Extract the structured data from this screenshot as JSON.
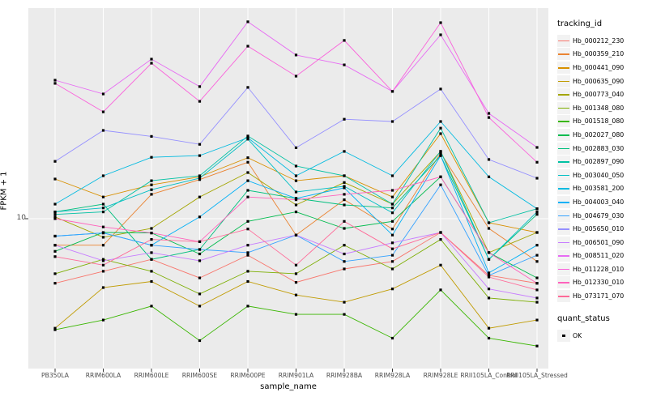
{
  "chart_data": {
    "type": "line",
    "title": "",
    "xlabel": "sample_name",
    "ylabel": "FPKM + 1",
    "y_scale": "log10",
    "y_tick_label": "10",
    "y_tick_value": 10,
    "grid": "major-white-on-gray",
    "panel_color": "#EBEBEB",
    "marker": "black-square",
    "legend_position": "right",
    "legend": {
      "tracking_title": "tracking_id",
      "quant_title": "quant_status",
      "quant_value": "OK"
    },
    "categories": [
      "PB350LA",
      "RRIM600LA",
      "RRIM600LE",
      "RRIM600SE",
      "RRIM600PE",
      "RRIM901LA",
      "RRIM928BA",
      "RRIM928LA",
      "RRIM928LE",
      "RRII105LA_Control",
      "RRII105LA_Stressed"
    ],
    "series": [
      {
        "name": "Hb_000212_230",
        "color": "#F8766D",
        "values": [
          4.8,
          5.5,
          6.3,
          5.1,
          6.6,
          4.85,
          5.65,
          6.15,
          8.55,
          5.25,
          4.8
        ]
      },
      {
        "name": "Hb_000359_210",
        "color": "#EA8331",
        "values": [
          7.4,
          7.4,
          13.2,
          15.6,
          19.0,
          8.3,
          12.4,
          8.9,
          21.1,
          8.95,
          6.15
        ]
      },
      {
        "name": "Hb_000441_090",
        "color": "#D89000",
        "values": [
          15.7,
          12.8,
          14.7,
          16.1,
          20.0,
          15.4,
          16.3,
          12.8,
          26.3,
          9.55,
          8.55
        ]
      },
      {
        "name": "Hb_000635_090",
        "color": "#C09B00",
        "values": [
          2.88,
          4.57,
          4.9,
          3.7,
          4.9,
          4.2,
          3.87,
          4.5,
          5.9,
          2.88,
          3.16
        ]
      },
      {
        "name": "Hb_000773_040",
        "color": "#A3A500",
        "values": [
          10.2,
          8.1,
          8.95,
          12.8,
          16.9,
          11.7,
          15.1,
          11.8,
          21.5,
          6.8,
          8.55
        ]
      },
      {
        "name": "Hb_001348_080",
        "color": "#7CAE00",
        "values": [
          5.35,
          6.3,
          5.5,
          4.25,
          5.5,
          5.35,
          7.4,
          5.65,
          7.9,
          4.06,
          3.87
        ]
      },
      {
        "name": "Hb_001518_080",
        "color": "#39B600",
        "values": [
          2.83,
          3.16,
          3.7,
          2.5,
          3.7,
          3.37,
          3.37,
          2.57,
          4.45,
          2.57,
          2.35
        ]
      },
      {
        "name": "Hb_002027_080",
        "color": "#00BB4E",
        "values": [
          6.9,
          8.55,
          8.5,
          6.7,
          9.7,
          10.8,
          8.95,
          9.7,
          16.1,
          6.8,
          5.1
        ]
      },
      {
        "name": "Hb_002883_030",
        "color": "#00BF7D",
        "values": [
          10.8,
          11.8,
          6.3,
          7.05,
          13.8,
          12.6,
          11.7,
          11.3,
          20.5,
          6.3,
          10.5
        ]
      },
      {
        "name": "Hb_002897_090",
        "color": "#00C1A3",
        "values": [
          10.5,
          10.8,
          15.4,
          16.3,
          25.6,
          18.2,
          16.3,
          11.8,
          28.0,
          9.55,
          11.2
        ]
      },
      {
        "name": "Hb_003040_050",
        "color": "#00BFC4",
        "values": [
          10.8,
          11.3,
          13.9,
          15.85,
          24.7,
          13.55,
          14.45,
          10.7,
          21.5,
          6.3,
          10.8
        ]
      },
      {
        "name": "Hb_003581_200",
        "color": "#00BAE0",
        "values": [
          11.8,
          16.3,
          20.1,
          20.5,
          25.1,
          16.3,
          21.5,
          16.3,
          30.2,
          16.1,
          11.2
        ]
      },
      {
        "name": "Hb_004003_040",
        "color": "#00B0F6",
        "values": [
          8.2,
          8.5,
          7.4,
          10.2,
          15.4,
          12.6,
          14.2,
          8.3,
          20.5,
          5.4,
          7.4
        ]
      },
      {
        "name": "Hb_004679_030",
        "color": "#35A2FF",
        "values": [
          8.2,
          8.5,
          7.4,
          7.05,
          6.8,
          8.3,
          6.15,
          6.6,
          14.7,
          5.25,
          6.6
        ]
      },
      {
        "name": "Hb_005650_010",
        "color": "#9590FF",
        "values": [
          19.2,
          27.3,
          25.5,
          23.3,
          44.5,
          22.4,
          31.0,
          30.2,
          43.7,
          19.6,
          15.85
        ]
      },
      {
        "name": "Hb_006501_090",
        "color": "#C77CFF",
        "values": [
          7.4,
          6.2,
          6.8,
          6.2,
          7.4,
          8.3,
          6.7,
          7.6,
          8.55,
          4.5,
          4.06
        ]
      },
      {
        "name": "Hb_008511_020",
        "color": "#E76BF3",
        "values": [
          48.3,
          41.3,
          61.4,
          44.9,
          93.8,
          64.3,
          57.5,
          42.5,
          80.9,
          33.1,
          22.5
        ]
      },
      {
        "name": "Hb_011228_010",
        "color": "#FA62DB",
        "values": [
          46.6,
          33.7,
          58.6,
          38.0,
          71.1,
          50.6,
          75.9,
          42.5,
          92.9,
          31.6,
          19.0
        ]
      },
      {
        "name": "Hb_012330_010",
        "color": "#FF62BC",
        "values": [
          10.0,
          9.1,
          8.5,
          7.7,
          12.8,
          12.4,
          13.2,
          13.8,
          16.1,
          6.8,
          4.8
        ]
      },
      {
        "name": "Hb_073171_070",
        "color": "#FF6A98",
        "values": [
          6.5,
          5.9,
          7.9,
          7.7,
          8.9,
          5.9,
          9.7,
          7.1,
          8.55,
          5.15,
          4.45
        ]
      }
    ]
  }
}
